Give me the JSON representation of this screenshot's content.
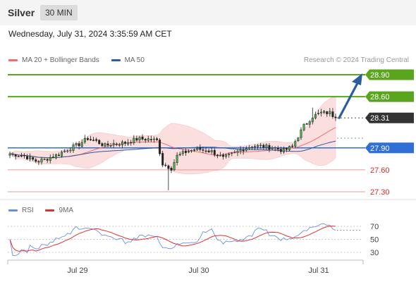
{
  "header": {
    "symbol": "Silver",
    "interval": "30 MIN",
    "datetime": "Wednesday, July 31, 2024 3:35:59 AM CET"
  },
  "legend": {
    "ma20_label": "MA 20 + Bollinger Bands",
    "ma50_label": "MA 50",
    "ma20_color": "#ef6f6f",
    "ma50_color": "#2c5d9e",
    "research": "Research © 2024 Trading Central"
  },
  "rsi_legend": {
    "rsi_label": "RSI",
    "ma9_label": "9MA",
    "rsi_color": "#6b8fe0",
    "ma9_color": "#e23030"
  },
  "chart_data": [
    {
      "type": "candlestick",
      "x_tick_labels": [
        "Jul 29",
        "Jul 30",
        "Jul 31"
      ],
      "ylim": [
        27.1,
        29.0
      ],
      "levels": [
        {
          "value": 28.9,
          "label": "28.90",
          "kind": "resistance",
          "color": "#5aa51e"
        },
        {
          "value": 28.6,
          "label": "28.60",
          "kind": "resistance",
          "color": "#5aa51e"
        },
        {
          "value": 28.31,
          "label": "28.31",
          "kind": "last",
          "color": "#333333"
        },
        {
          "value": 27.9,
          "label": "27.90",
          "kind": "pivot",
          "color": "#2f6fd6"
        },
        {
          "value": 27.6,
          "label": "27.60",
          "kind": "support",
          "color": "#d62a2a"
        },
        {
          "value": 27.3,
          "label": "27.30",
          "kind": "support",
          "color": "#d62a2a"
        }
      ],
      "projection": {
        "from": 28.31,
        "to": 28.9,
        "color": "#2c5d9e"
      },
      "bb_fill": "#fbd9d9"
    },
    {
      "type": "line",
      "name": "RSI",
      "y_tick_labels": [
        "70",
        "50",
        "30"
      ],
      "y_ticks": [
        70,
        50,
        30
      ],
      "ylim": [
        15,
        85
      ]
    }
  ]
}
